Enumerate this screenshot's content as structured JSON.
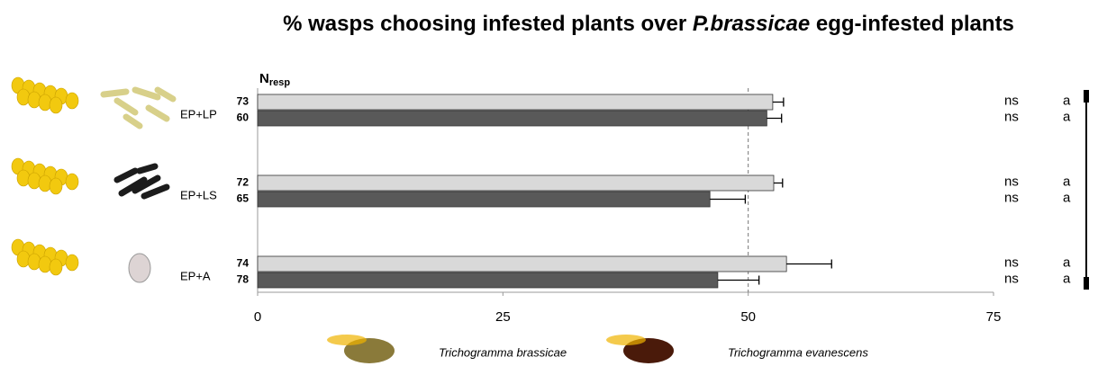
{
  "chart_data": {
    "type": "bar",
    "orientation": "horizontal",
    "title": [
      "% wasps choosing infested plants over ",
      "P.brassicae",
      " egg-infested plants"
    ],
    "n_label": "N",
    "n_label_sub": "resp",
    "categories": [
      "EP+LP",
      "EP+LS",
      "EP+A"
    ],
    "series": [
      {
        "name": "Trichogramma brassicae",
        "color": "#d9d9d9",
        "values": [
          52.5,
          52.6,
          53.9
        ],
        "errors": [
          1.1,
          0.9,
          4.6
        ],
        "n": [
          73,
          72,
          74
        ],
        "sig": [
          "ns",
          "ns",
          "ns"
        ],
        "letters": [
          "a",
          "a",
          "a"
        ]
      },
      {
        "name": "Trichogramma evanescens",
        "color": "#595959",
        "values": [
          51.9,
          46.1,
          46.9
        ],
        "errors": [
          1.5,
          3.6,
          4.2
        ],
        "n": [
          60,
          65,
          78
        ],
        "sig": [
          "ns",
          "ns",
          "ns"
        ],
        "letters": [
          "a",
          "a",
          "a"
        ]
      }
    ],
    "xlim": [
      0,
      75
    ],
    "xticks": [
      0,
      25,
      50,
      75
    ],
    "refline": 50
  }
}
